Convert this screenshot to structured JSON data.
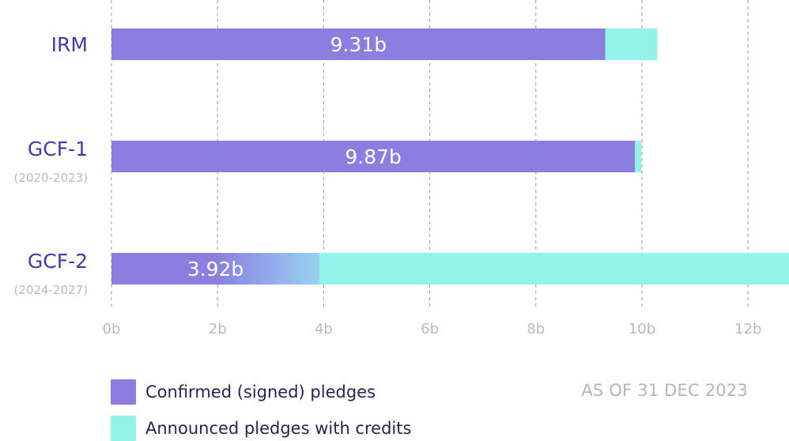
{
  "chart_data": {
    "type": "bar",
    "orientation": "horizontal",
    "stacked": true,
    "categories": [
      {
        "name": "IRM",
        "sub": ""
      },
      {
        "name": "GCF-1",
        "sub": "(2020-2023)"
      },
      {
        "name": "GCF-2",
        "sub": "(2024-2027)"
      }
    ],
    "series": [
      {
        "name": "Confirmed (signed) pledges",
        "color": "#8a7fe0",
        "values": [
          9.31,
          9.87,
          3.92
        ],
        "labels": [
          "9.31b",
          "9.87b",
          "3.92b"
        ]
      },
      {
        "name": "Announced pledges with credits",
        "color": "#93f3ea",
        "values": [
          0.98,
          0.12,
          8.92
        ]
      }
    ],
    "xlim": [
      0,
      12.8
    ],
    "xticks": [
      0,
      2,
      4,
      6,
      8,
      10,
      12
    ],
    "xtick_labels": [
      "0b",
      "2b",
      "4b",
      "6b",
      "8b",
      "10b",
      "12b"
    ],
    "grid": "vertical dashed",
    "legend_position": "bottom-left"
  },
  "note": "AS OF 31 DEC 2023"
}
